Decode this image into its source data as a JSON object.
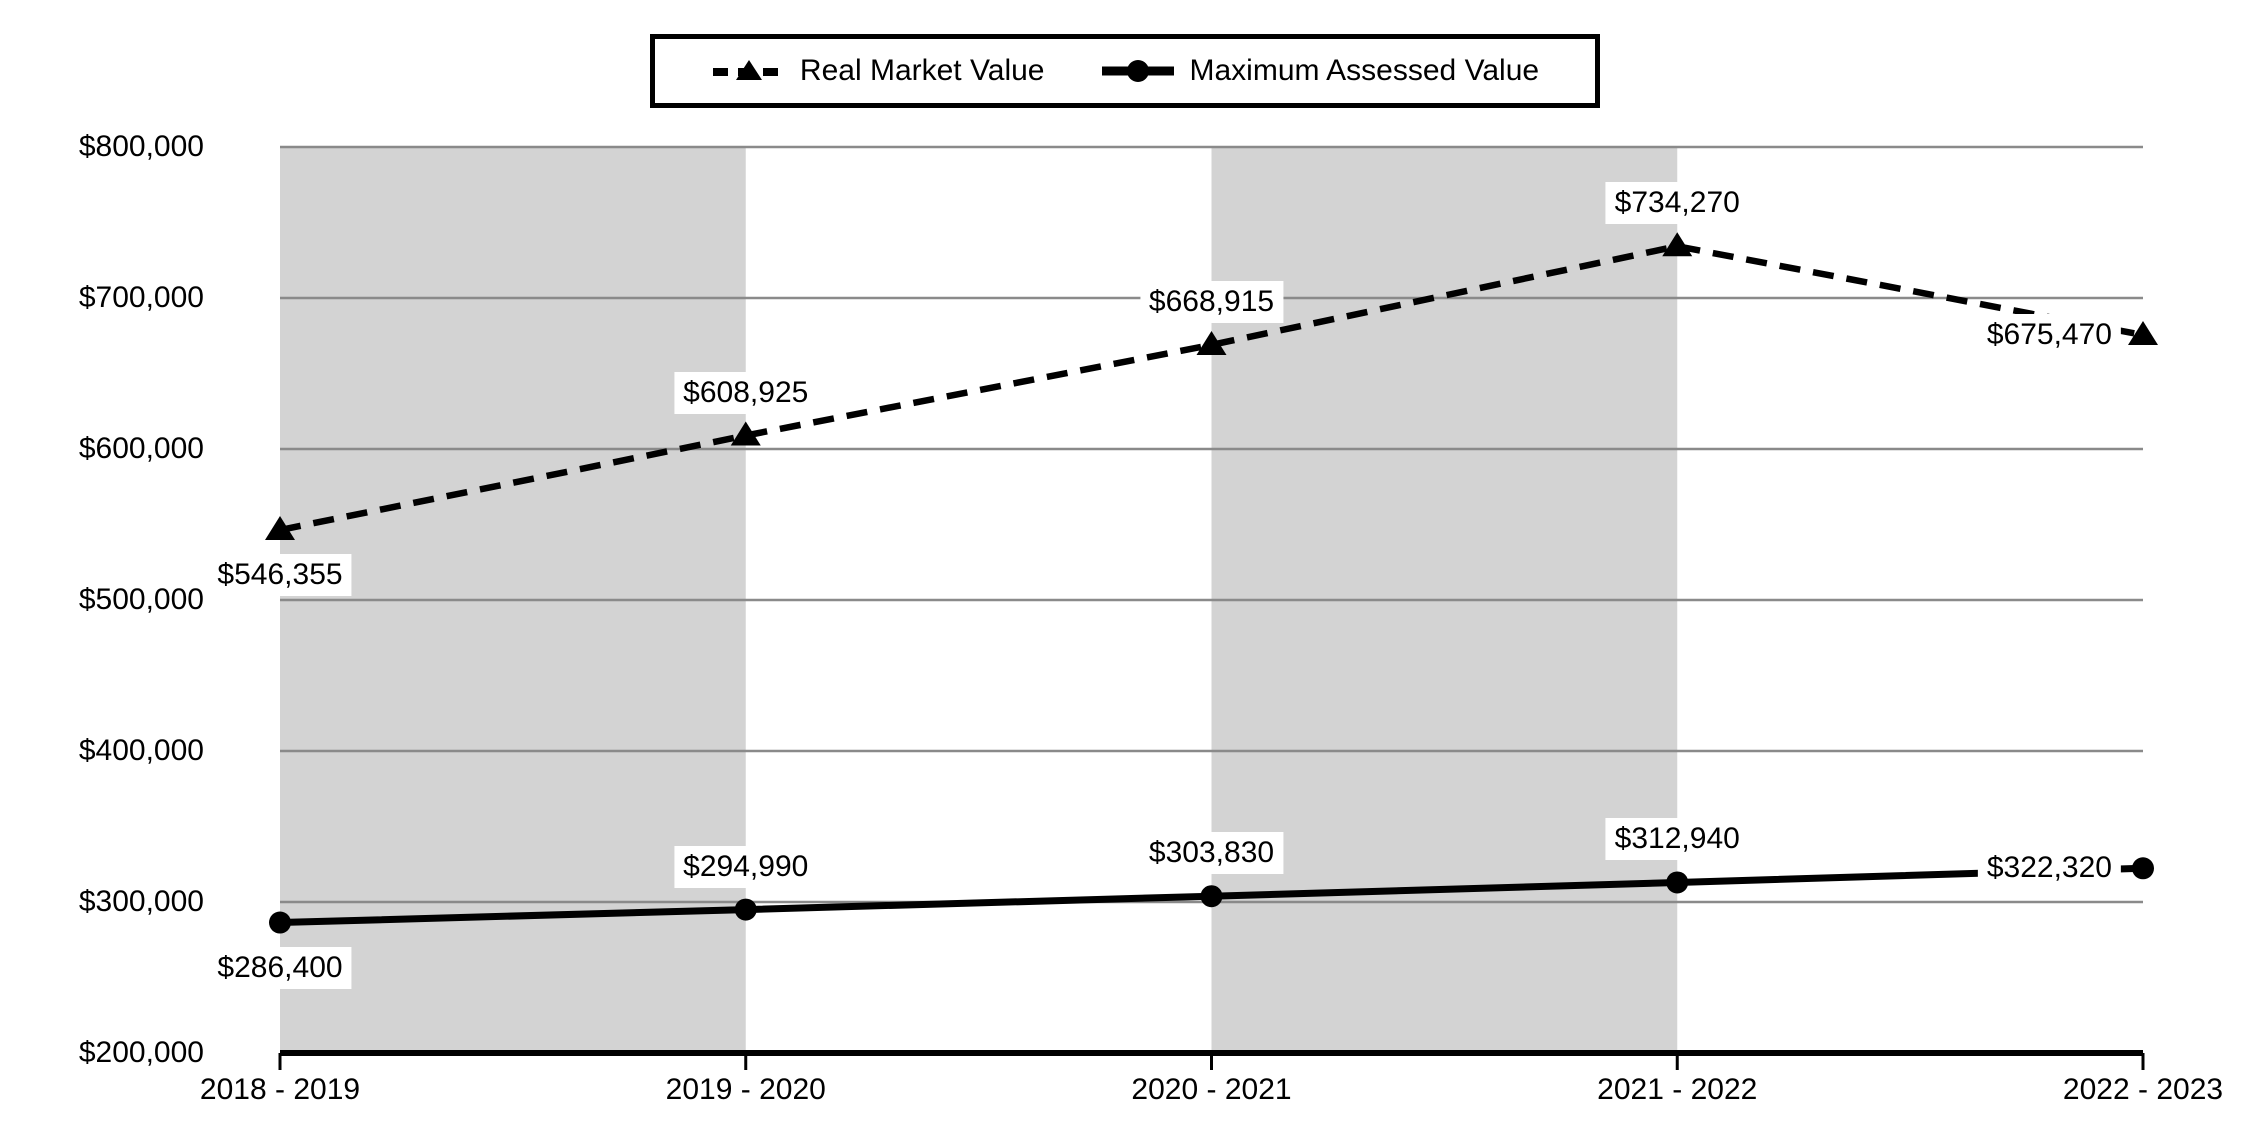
{
  "chart_data": {
    "type": "line",
    "title": "",
    "categories": [
      "2018 - 2019",
      "2019 - 2020",
      "2020 - 2021",
      "2021 - 2022",
      "2022 - 2023"
    ],
    "series": [
      {
        "name": "Real Market Value",
        "line_style": "dashed",
        "marker": "triangle",
        "color": "#000000",
        "values": [
          546355,
          608925,
          668915,
          734270,
          675470
        ],
        "data_labels": [
          "$546,355",
          "$608,925",
          "$668,915",
          "$734,270",
          "$675,470"
        ],
        "label_positions": [
          "below",
          "above",
          "above",
          "above",
          "left"
        ]
      },
      {
        "name": "Maximum Assessed Value",
        "line_style": "solid",
        "marker": "circle",
        "color": "#000000",
        "values": [
          286400,
          294990,
          303830,
          312940,
          322320
        ],
        "data_labels": [
          "$286,400",
          "$294,990",
          "$303,830",
          "$312,940",
          "$322,320"
        ],
        "label_positions": [
          "below",
          "above",
          "above",
          "above",
          "left"
        ]
      }
    ],
    "y_axis": {
      "min": 200000,
      "max": 800000,
      "step": 100000,
      "tick_labels": [
        "$800,000",
        "$700,000",
        "$600,000",
        "$500,000",
        "$400,000",
        "$300,000",
        "$200,000"
      ]
    },
    "x_axis": {
      "tick_labels": [
        "2018 - 2019",
        "2019 - 2020",
        "2020 - 2021",
        "2021 - 2022",
        "2022 - 2023"
      ]
    },
    "background_bands": {
      "category_spans": [
        [
          0,
          1
        ],
        [
          2,
          3
        ]
      ],
      "color": "#d3d3d3"
    },
    "grid": {
      "horizontal": true,
      "vertical": false,
      "color": "#8a8a8a"
    },
    "legend": {
      "position": "top-center",
      "items": [
        "Real Market Value",
        "Maximum Assessed Value"
      ]
    },
    "colors": {
      "line": "#000000",
      "axis": "#000000",
      "label_background": "#ffffff",
      "band": "#d3d3d3",
      "gridline": "#8a8a8a"
    }
  }
}
